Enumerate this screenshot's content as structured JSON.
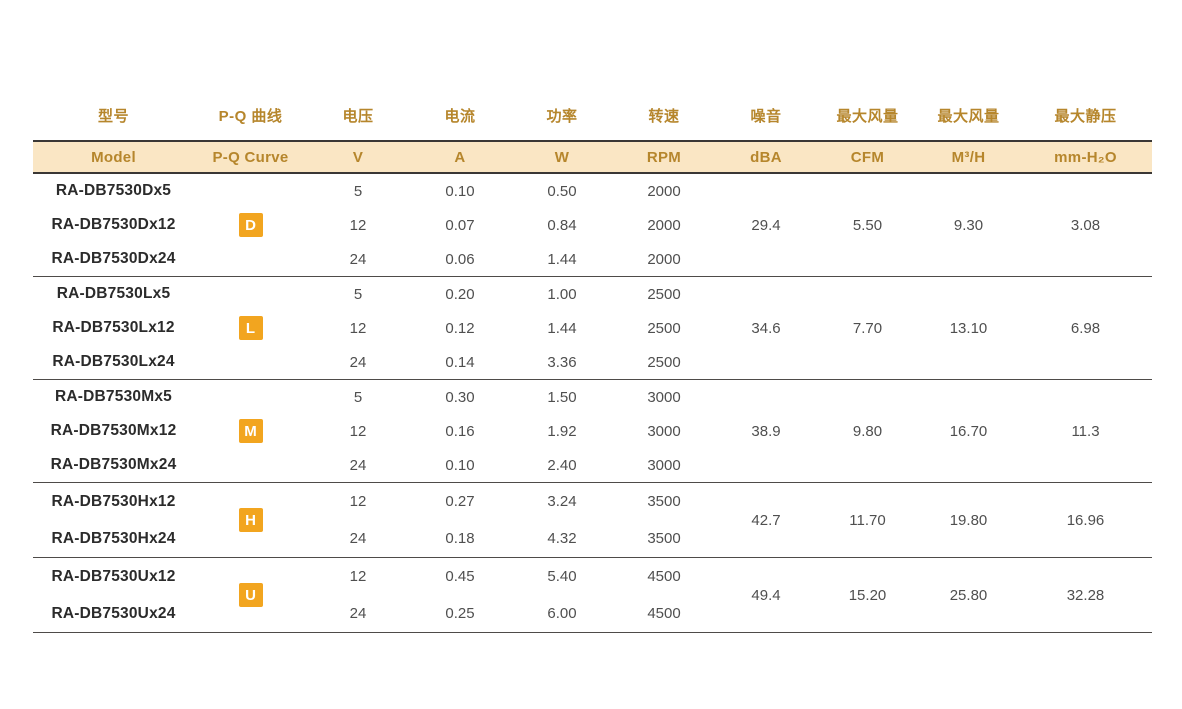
{
  "colors": {
    "header_text": "#B6862C",
    "header_band_bg": "#FAE6C4",
    "band_border": "#3A3735",
    "divider": "#4E4B49",
    "badge_bg": "#F2A51F",
    "model_text": "#2B2B2B",
    "value_text": "#4F4F4F"
  },
  "table": {
    "columns": [
      {
        "key": "model",
        "zh": "型号",
        "unit": "Model"
      },
      {
        "key": "pq_curve",
        "zh": "P-Q 曲线",
        "unit": "P-Q Curve"
      },
      {
        "key": "voltage",
        "zh": "电压",
        "unit": "V"
      },
      {
        "key": "current",
        "zh": "电流",
        "unit": "A"
      },
      {
        "key": "power",
        "zh": "功率",
        "unit": "W"
      },
      {
        "key": "rpm",
        "zh": "转速",
        "unit": "RPM"
      },
      {
        "key": "noise",
        "zh": "噪音",
        "unit": "dBA"
      },
      {
        "key": "cfm",
        "zh": "最大风量",
        "unit": "CFM"
      },
      {
        "key": "m3h",
        "zh": "最大风量",
        "unit": "M³/H"
      },
      {
        "key": "static_pressure",
        "zh": "最大静压",
        "unit": "mm-H₂O"
      }
    ],
    "groups": [
      {
        "curve": "D",
        "noise_dba": "29.4",
        "max_airflow_cfm": "5.50",
        "max_airflow_m3h": "9.30",
        "max_static_pressure": "3.08",
        "rows": [
          {
            "model": "RA-DB7530Dx5",
            "voltage": "5",
            "current": "0.10",
            "power": "0.50",
            "rpm": "2000"
          },
          {
            "model": "RA-DB7530Dx12",
            "voltage": "12",
            "current": "0.07",
            "power": "0.84",
            "rpm": "2000"
          },
          {
            "model": "RA-DB7530Dx24",
            "voltage": "24",
            "current": "0.06",
            "power": "1.44",
            "rpm": "2000"
          }
        ]
      },
      {
        "curve": "L",
        "noise_dba": "34.6",
        "max_airflow_cfm": "7.70",
        "max_airflow_m3h": "13.10",
        "max_static_pressure": "6.98",
        "rows": [
          {
            "model": "RA-DB7530Lx5",
            "voltage": "5",
            "current": "0.20",
            "power": "1.00",
            "rpm": "2500"
          },
          {
            "model": "RA-DB7530Lx12",
            "voltage": "12",
            "current": "0.12",
            "power": "1.44",
            "rpm": "2500"
          },
          {
            "model": "RA-DB7530Lx24",
            "voltage": "24",
            "current": "0.14",
            "power": "3.36",
            "rpm": "2500"
          }
        ]
      },
      {
        "curve": "M",
        "noise_dba": "38.9",
        "max_airflow_cfm": "9.80",
        "max_airflow_m3h": "16.70",
        "max_static_pressure": "11.3",
        "rows": [
          {
            "model": "RA-DB7530Mx5",
            "voltage": "5",
            "current": "0.30",
            "power": "1.50",
            "rpm": "3000"
          },
          {
            "model": "RA-DB7530Mx12",
            "voltage": "12",
            "current": "0.16",
            "power": "1.92",
            "rpm": "3000"
          },
          {
            "model": "RA-DB7530Mx24",
            "voltage": "24",
            "current": "0.10",
            "power": "2.40",
            "rpm": "3000"
          }
        ]
      },
      {
        "curve": "H",
        "noise_dba": "42.7",
        "max_airflow_cfm": "11.70",
        "max_airflow_m3h": "19.80",
        "max_static_pressure": "16.96",
        "rows": [
          {
            "model": "RA-DB7530Hx12",
            "voltage": "12",
            "current": "0.27",
            "power": "3.24",
            "rpm": "3500"
          },
          {
            "model": "RA-DB7530Hx24",
            "voltage": "24",
            "current": "0.18",
            "power": "4.32",
            "rpm": "3500"
          }
        ]
      },
      {
        "curve": "U",
        "noise_dba": "49.4",
        "max_airflow_cfm": "15.20",
        "max_airflow_m3h": "25.80",
        "max_static_pressure": "32.28",
        "rows": [
          {
            "model": "RA-DB7530Ux12",
            "voltage": "12",
            "current": "0.45",
            "power": "5.40",
            "rpm": "4500"
          },
          {
            "model": "RA-DB7530Ux24",
            "voltage": "24",
            "current": "0.25",
            "power": "6.00",
            "rpm": "4500"
          }
        ]
      }
    ]
  }
}
